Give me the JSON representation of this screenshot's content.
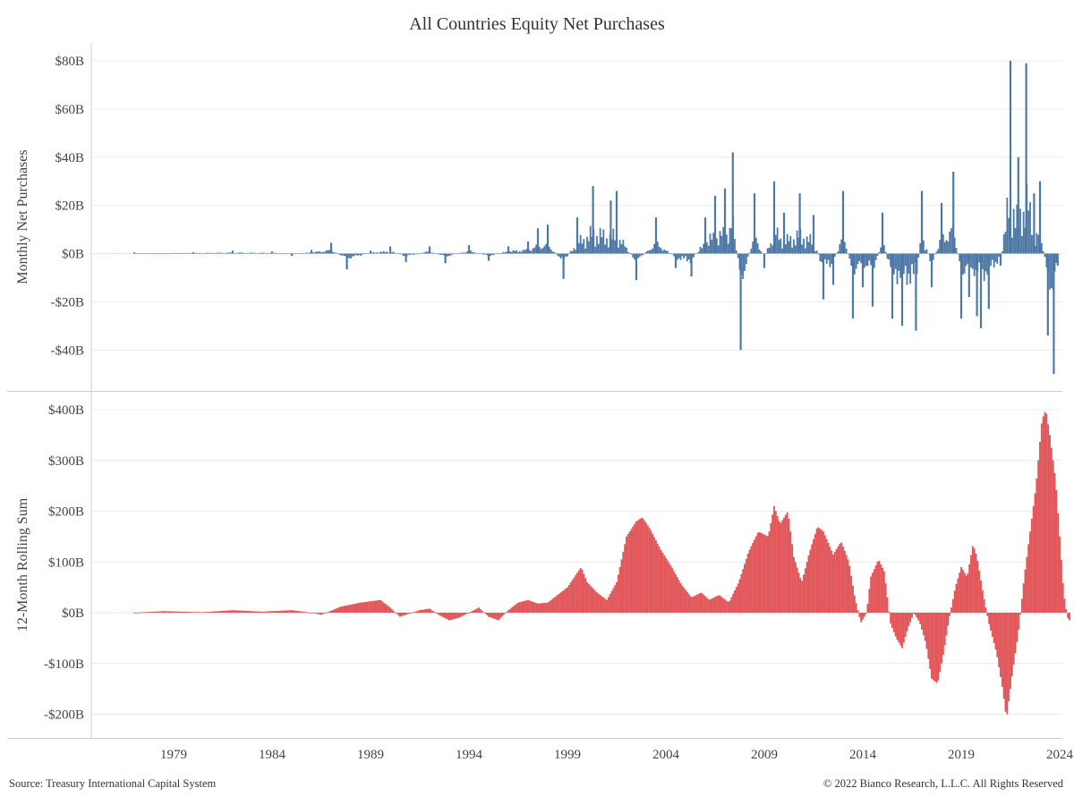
{
  "title": "All Countries Equity Net Purchases",
  "footer": {
    "source": "Source: Treasury International Capital System",
    "copyright": "© 2022 Bianco Research, L.L.C. All Rights Reserved"
  },
  "colors": {
    "monthly": "#4e79a7",
    "rolling": "#e15759",
    "grid": "#ececec",
    "zero": "#bfbfbf"
  },
  "chart_data": [
    {
      "type": "bar",
      "panel": "top",
      "ylabel": "Monthly Net Purchases",
      "ylim": [
        -50,
        80
      ],
      "yticks": [
        80,
        60,
        40,
        20,
        0,
        -20,
        -40
      ],
      "ytick_labels": [
        "$80B",
        "$60B",
        "$40B",
        "$20B",
        "$0B",
        "-$20B",
        "-$40B"
      ],
      "grid": true,
      "series": [
        {
          "color": "#4e79a7",
          "points": [
            [
              1977.0,
              0.5
            ],
            [
              1980.0,
              0.6
            ],
            [
              1982.0,
              1.2
            ],
            [
              1984.0,
              0.8
            ],
            [
              1985.0,
              -1.0
            ],
            [
              1986.0,
              1.5
            ],
            [
              1987.0,
              4.5
            ],
            [
              1987.8,
              -6.5
            ],
            [
              1989.0,
              1.2
            ],
            [
              1990.0,
              3.0
            ],
            [
              1990.8,
              -3.5
            ],
            [
              1992.0,
              3.0
            ],
            [
              1992.8,
              -4.0
            ],
            [
              1994.0,
              3.5
            ],
            [
              1995.0,
              -3.0
            ],
            [
              1996.0,
              3.0
            ],
            [
              1997.0,
              5.0
            ],
            [
              1997.5,
              10.5
            ],
            [
              1998.0,
              12.0
            ],
            [
              1998.8,
              -10.5
            ],
            [
              1999.5,
              15.0
            ],
            [
              2000.3,
              28.0
            ],
            [
              2001.2,
              22.0
            ],
            [
              2001.5,
              26.0
            ],
            [
              2002.5,
              -11.0
            ],
            [
              2003.5,
              15.0
            ],
            [
              2004.5,
              -6.0
            ],
            [
              2005.3,
              -9.5
            ],
            [
              2006.0,
              15.0
            ],
            [
              2006.5,
              24.0
            ],
            [
              2007.0,
              27.0
            ],
            [
              2007.4,
              42.0
            ],
            [
              2007.8,
              -40.0
            ],
            [
              2008.5,
              25.0
            ],
            [
              2009.0,
              -6.0
            ],
            [
              2009.5,
              30.0
            ],
            [
              2010.0,
              17.0
            ],
            [
              2010.8,
              25.0
            ],
            [
              2011.5,
              16.0
            ],
            [
              2012.0,
              -19.0
            ],
            [
              2012.5,
              -13.0
            ],
            [
              2013.0,
              26.0
            ],
            [
              2013.5,
              -27.0
            ],
            [
              2014.0,
              -14.0
            ],
            [
              2014.5,
              -22.0
            ],
            [
              2015.0,
              17.0
            ],
            [
              2015.5,
              -27.0
            ],
            [
              2016.0,
              -30.0
            ],
            [
              2016.7,
              -32.0
            ],
            [
              2017.0,
              26.0
            ],
            [
              2017.5,
              -14.0
            ],
            [
              2018.0,
              21.0
            ],
            [
              2018.6,
              34.0
            ],
            [
              2019.0,
              -27.0
            ],
            [
              2019.4,
              -18.0
            ],
            [
              2019.8,
              -26.0
            ],
            [
              2020.0,
              -31.0
            ],
            [
              2020.4,
              -23.0
            ],
            [
              2021.0,
              -5.0
            ],
            [
              2021.5,
              80.0
            ],
            [
              2021.9,
              40.0
            ],
            [
              2022.3,
              79.0
            ],
            [
              2022.7,
              25.0
            ],
            [
              2023.0,
              30.0
            ],
            [
              2023.4,
              -34.0
            ],
            [
              2023.7,
              -50.0
            ],
            [
              2023.9,
              -5.0
            ]
          ]
        }
      ]
    },
    {
      "type": "area",
      "panel": "bottom",
      "ylabel": "12-Month Rolling Sum",
      "ylim": [
        -215,
        420
      ],
      "yticks": [
        400,
        300,
        200,
        100,
        0,
        -100,
        -200
      ],
      "ytick_labels": [
        "$400B",
        "$300B",
        "$200B",
        "$100B",
        "$0B",
        "-$100B",
        "-$200B"
      ],
      "grid": true,
      "series": [
        {
          "color": "#e15759",
          "points": [
            [
              1977.0,
              0
            ],
            [
              1978.5,
              3
            ],
            [
              1980.5,
              1
            ],
            [
              1982.0,
              5
            ],
            [
              1983.5,
              2
            ],
            [
              1985.0,
              5
            ],
            [
              1986.0,
              0
            ],
            [
              1986.5,
              -4
            ],
            [
              1987.5,
              12
            ],
            [
              1988.5,
              20
            ],
            [
              1989.5,
              25
            ],
            [
              1990.0,
              10
            ],
            [
              1990.5,
              -8
            ],
            [
              1991.5,
              5
            ],
            [
              1992.0,
              8
            ],
            [
              1992.5,
              -5
            ],
            [
              1993.0,
              -15
            ],
            [
              1993.5,
              -10
            ],
            [
              1994.0,
              0
            ],
            [
              1994.5,
              10
            ],
            [
              1995.0,
              -8
            ],
            [
              1995.5,
              -15
            ],
            [
              1996.0,
              5
            ],
            [
              1996.5,
              20
            ],
            [
              1997.0,
              25
            ],
            [
              1997.5,
              18
            ],
            [
              1998.0,
              20
            ],
            [
              1999.0,
              50
            ],
            [
              1999.7,
              90
            ],
            [
              2000.0,
              60
            ],
            [
              2000.5,
              40
            ],
            [
              2001.0,
              25
            ],
            [
              2001.5,
              60
            ],
            [
              2002.0,
              150
            ],
            [
              2002.5,
              180
            ],
            [
              2002.8,
              188
            ],
            [
              2003.2,
              165
            ],
            [
              2003.8,
              120
            ],
            [
              2004.3,
              90
            ],
            [
              2004.8,
              55
            ],
            [
              2005.3,
              30
            ],
            [
              2005.8,
              40
            ],
            [
              2006.2,
              25
            ],
            [
              2006.7,
              35
            ],
            [
              2007.2,
              20
            ],
            [
              2007.7,
              60
            ],
            [
              2008.2,
              120
            ],
            [
              2008.7,
              160
            ],
            [
              2009.2,
              150
            ],
            [
              2009.5,
              210
            ],
            [
              2009.8,
              175
            ],
            [
              2010.2,
              200
            ],
            [
              2010.5,
              110
            ],
            [
              2010.9,
              60
            ],
            [
              2011.3,
              120
            ],
            [
              2011.7,
              170
            ],
            [
              2012.0,
              160
            ],
            [
              2012.5,
              115
            ],
            [
              2012.9,
              140
            ],
            [
              2013.3,
              100
            ],
            [
              2013.6,
              30
            ],
            [
              2013.9,
              -20
            ],
            [
              2014.2,
              0
            ],
            [
              2014.4,
              70
            ],
            [
              2014.8,
              105
            ],
            [
              2015.1,
              80
            ],
            [
              2015.4,
              -20
            ],
            [
              2015.7,
              -50
            ],
            [
              2016.0,
              -70
            ],
            [
              2016.3,
              -30
            ],
            [
              2016.6,
              0
            ],
            [
              2016.9,
              -20
            ],
            [
              2017.2,
              -60
            ],
            [
              2017.5,
              -130
            ],
            [
              2017.8,
              -140
            ],
            [
              2018.1,
              -80
            ],
            [
              2018.4,
              -10
            ],
            [
              2018.7,
              50
            ],
            [
              2019.0,
              90
            ],
            [
              2019.3,
              70
            ],
            [
              2019.6,
              135
            ],
            [
              2019.8,
              110
            ],
            [
              2020.1,
              40
            ],
            [
              2020.4,
              -20
            ],
            [
              2020.8,
              -80
            ],
            [
              2021.1,
              -150
            ],
            [
              2021.3,
              -210
            ],
            [
              2021.6,
              -120
            ],
            [
              2021.9,
              -40
            ],
            [
              2022.2,
              70
            ],
            [
              2022.5,
              160
            ],
            [
              2022.8,
              250
            ],
            [
              2023.1,
              380
            ],
            [
              2023.3,
              400
            ],
            [
              2023.5,
              350
            ],
            [
              2023.8,
              260
            ],
            [
              2024.0,
              150
            ],
            [
              2024.2,
              40
            ],
            [
              2024.4,
              -10
            ],
            [
              2024.5,
              -15
            ]
          ]
        }
      ]
    }
  ],
  "x_axis": {
    "ticks": [
      1979,
      1984,
      1989,
      1994,
      1999,
      2004,
      2009,
      2014,
      2019,
      2024
    ],
    "tick_labels": [
      "1979",
      "1984",
      "1989",
      "1994",
      "1999",
      "2004",
      "2009",
      "2014",
      "2019",
      "2024"
    ]
  }
}
